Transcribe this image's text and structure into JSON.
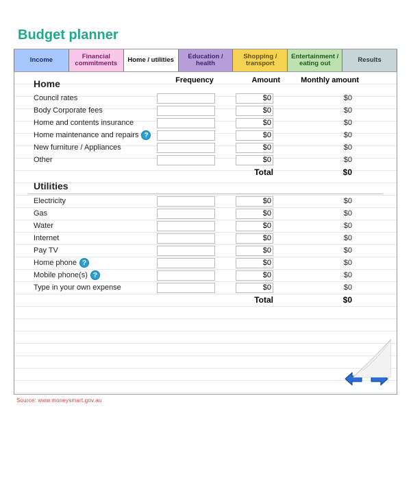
{
  "title": "Budget planner",
  "tabs": [
    {
      "label": "Income",
      "bg": "#a9c7ff",
      "color": "#1a2a7a"
    },
    {
      "label": "Financial commitments",
      "bg": "#f7c6e8",
      "color": "#8a1e6a"
    },
    {
      "label": "Home / utilities",
      "bg": "#ffffff",
      "color": "#111111"
    },
    {
      "label": "Education / health",
      "bg": "#b89ed9",
      "color": "#3b1f78"
    },
    {
      "label": "Shopping / transport",
      "bg": "#f6d253",
      "color": "#6a4e00"
    },
    {
      "label": "Entertainment / eating out",
      "bg": "#bde0b1",
      "color": "#1e5e13"
    },
    {
      "label": "Results",
      "bg": "#c7d4d6",
      "color": "#2a3a3c"
    }
  ],
  "columns": {
    "frequency": "Frequency",
    "amount": "Amount",
    "monthly": "Monthly amount"
  },
  "sections": [
    {
      "name": "Home",
      "rows": [
        {
          "label": "Council rates",
          "help": false,
          "amount": "$0",
          "monthly": "$0"
        },
        {
          "label": "Body Corporate fees",
          "help": false,
          "amount": "$0",
          "monthly": "$0"
        },
        {
          "label": "Home and contents insurance",
          "help": false,
          "amount": "$0",
          "monthly": "$0"
        },
        {
          "label": "Home maintenance and repairs",
          "help": true,
          "amount": "$0",
          "monthly": "$0"
        },
        {
          "label": "New furniture / Appliances",
          "help": false,
          "amount": "$0",
          "monthly": "$0"
        },
        {
          "label": "Other",
          "help": false,
          "amount": "$0",
          "monthly": "$0"
        }
      ],
      "total_label": "Total",
      "total_value": "$0"
    },
    {
      "name": "Utilities",
      "rows": [
        {
          "label": "Electricity",
          "help": false,
          "amount": "$0",
          "monthly": "$0"
        },
        {
          "label": "Gas",
          "help": false,
          "amount": "$0",
          "monthly": "$0"
        },
        {
          "label": "Water",
          "help": false,
          "amount": "$0",
          "monthly": "$0"
        },
        {
          "label": "Internet",
          "help": false,
          "amount": "$0",
          "monthly": "$0"
        },
        {
          "label": "Pay TV",
          "help": false,
          "amount": "$0",
          "monthly": "$0"
        },
        {
          "label": "Home phone",
          "help": true,
          "amount": "$0",
          "monthly": "$0"
        },
        {
          "label": "Mobile phone(s)",
          "help": true,
          "amount": "$0",
          "monthly": "$0"
        },
        {
          "label": "Type in your own expense",
          "help": false,
          "amount": "$0",
          "monthly": "$0"
        }
      ],
      "total_label": "Total",
      "total_value": "$0"
    }
  ],
  "arrow_color": "#2a6fd1",
  "arrow_stroke": "#0b3e8f",
  "footer_note": "Source: www.moneysmart.gov.au"
}
